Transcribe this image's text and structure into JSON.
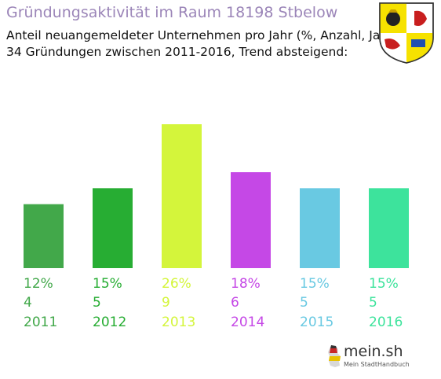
{
  "header": {
    "title": "Gründungsaktivität im Raum 18198 Stbelow",
    "subtitle_line1": "Anteil neuangemeldeter Unternehmen pro Jahr (%, Anzahl, Jahr)",
    "subtitle_line2": "34 Gründungen zwischen 2011-2016, Trend absteigend:"
  },
  "icons": {
    "coat_of_arms": "coat-of-arms-icon",
    "brand_map": "germany-map-icon"
  },
  "branding": {
    "name": "mein.sh",
    "tagline": "Mein StadtHandbuch"
  },
  "chart_data": {
    "type": "bar",
    "categories": [
      "2011",
      "2012",
      "2013",
      "2014",
      "2015",
      "2016"
    ],
    "values": [
      4,
      5,
      9,
      6,
      5,
      5
    ],
    "percent_labels": [
      "12%",
      "15%",
      "26%",
      "18%",
      "15%",
      "15%"
    ],
    "count_labels": [
      "4",
      "5",
      "9",
      "6",
      "5",
      "5"
    ],
    "colors": [
      "#42a84a",
      "#27ad33",
      "#d4f53b",
      "#c548e6",
      "#69c9e2",
      "#3de39c"
    ],
    "ylim": [
      0,
      9
    ],
    "grid": false,
    "legend": "none"
  }
}
